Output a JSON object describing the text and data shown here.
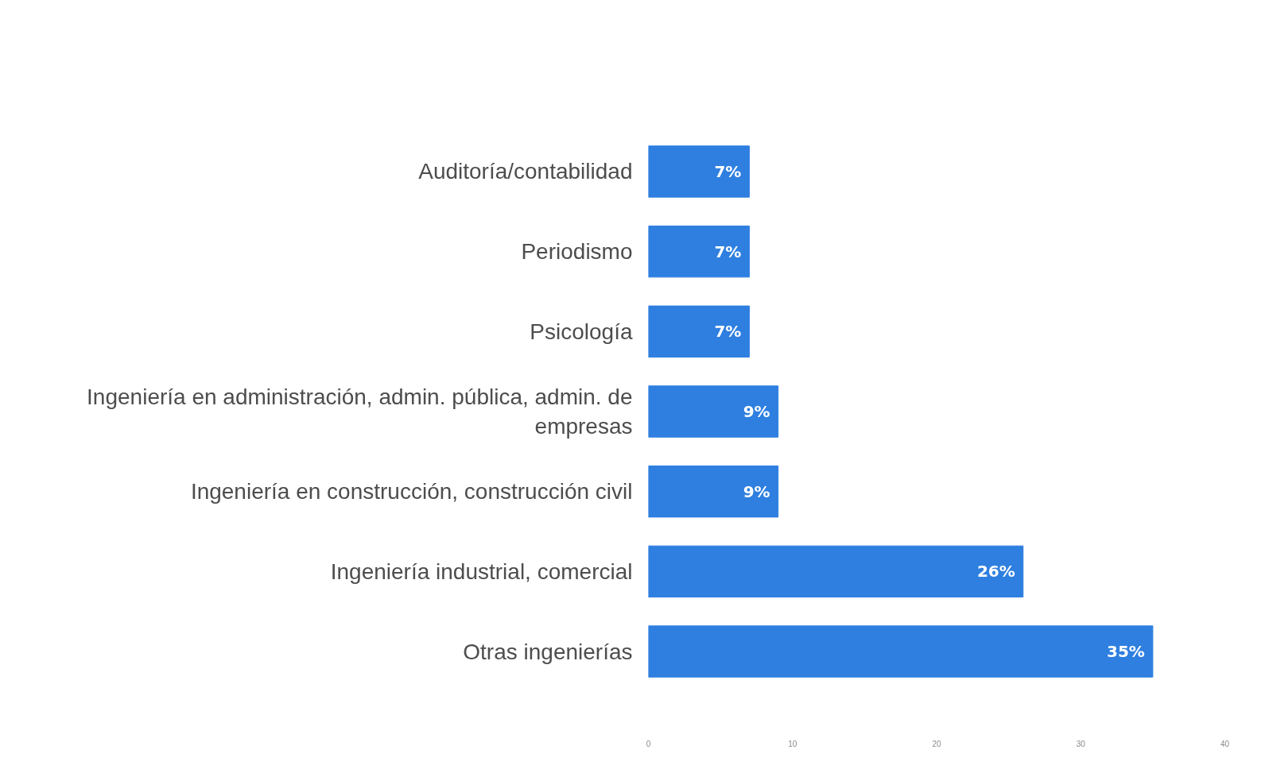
{
  "chart_data": {
    "type": "bar",
    "orientation": "horizontal",
    "categories": [
      "Auditoría/contabilidad",
      "Periodismo",
      "Psicología",
      "Ingeniería en administración, admin. pública, admin. de empresas",
      "Ingeniería en construcción, construcción civil",
      "Ingeniería industrial, comercial",
      "Otras ingenierías"
    ],
    "values": [
      7,
      7,
      7,
      9,
      9,
      26,
      35
    ],
    "color": "#2e7fe0",
    "value_labels": [
      "7%",
      "7%",
      "7%",
      "9%",
      "9%",
      "26%",
      "35%"
    ],
    "xlim": [
      0,
      40
    ],
    "xticks": [
      0,
      10,
      20,
      30,
      40
    ],
    "grid": false
  }
}
